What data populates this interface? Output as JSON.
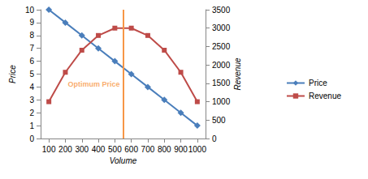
{
  "chart_data": {
    "type": "line",
    "x_label": "Volume",
    "y_label": "Price",
    "y2_label": "Revenue",
    "x": [
      100,
      200,
      300,
      400,
      500,
      600,
      700,
      800,
      900,
      1000
    ],
    "xlim": [
      50,
      1050
    ],
    "xticks": [
      100,
      200,
      300,
      400,
      500,
      600,
      700,
      800,
      900,
      1000
    ],
    "ylim": [
      0,
      10
    ],
    "yticks": [
      0,
      1,
      2,
      3,
      4,
      5,
      6,
      7,
      8,
      9,
      10
    ],
    "y2lim": [
      0,
      3500
    ],
    "y2ticks": [
      0,
      500,
      1000,
      1500,
      2000,
      2500,
      3000,
      3500
    ],
    "grid": false,
    "legend": "right",
    "series": [
      {
        "name": "Price",
        "color": "#4a7ebb",
        "marker": "diamond",
        "values": [
          10,
          9,
          8,
          7,
          6,
          5,
          4,
          3,
          2,
          1
        ]
      },
      {
        "name": "Revenue",
        "color": "#be4b48",
        "marker": "square",
        "axis": "y2",
        "values": [
          1000,
          1800,
          2400,
          2800,
          3000,
          3000,
          2800,
          2400,
          1800,
          1000
        ]
      }
    ],
    "annotations": [
      {
        "text": "Optimum Price",
        "x": 550,
        "y": 4.2,
        "color": "#f79646",
        "line_style": "solid"
      }
    ]
  }
}
